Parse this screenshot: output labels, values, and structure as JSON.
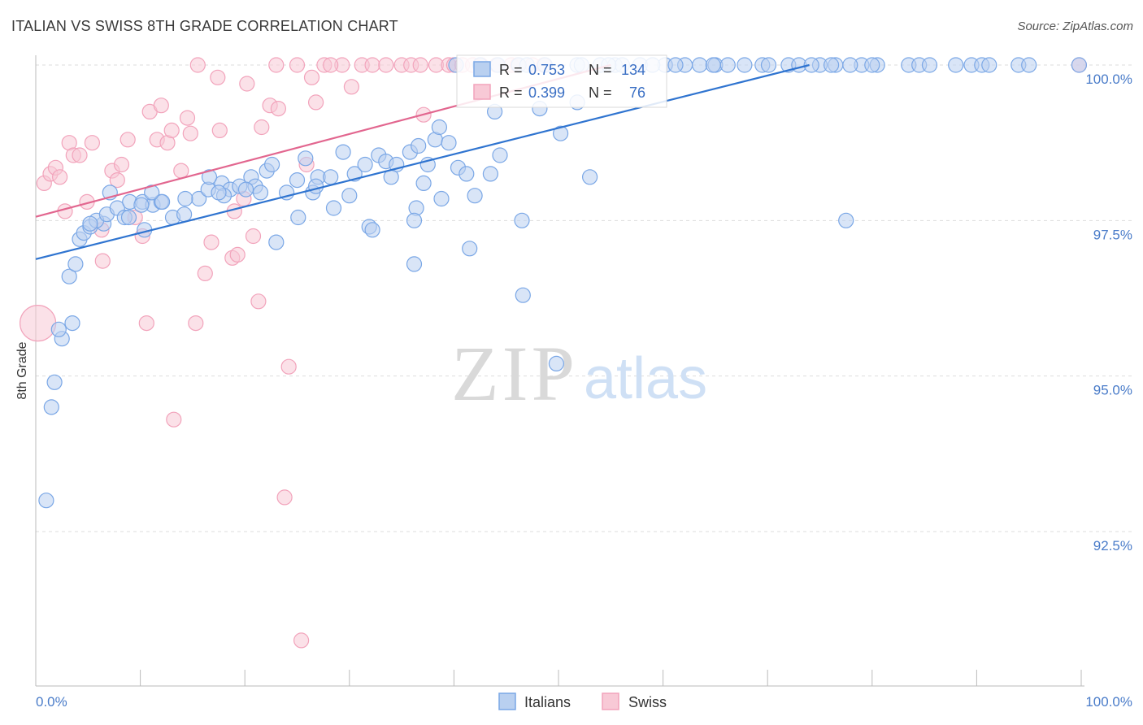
{
  "header": {
    "title": "ITALIAN VS SWISS 8TH GRADE CORRELATION CHART",
    "source": "Source: ZipAtlas.com"
  },
  "watermark": {
    "zip": "ZIP",
    "atlas": "atlas"
  },
  "colors": {
    "italians": "#7aa7e6",
    "italians_line": "#2f74d0",
    "swiss": "#f2a3bb",
    "swiss_line": "#e2668f",
    "tick": "#4a7cc9"
  },
  "stats": {
    "italians": {
      "r_label": "R =",
      "r_value": "0.753",
      "n_label": "N =",
      "n_value": "134"
    },
    "swiss": {
      "r_label": "R =",
      "r_value": "0.399",
      "n_label": "N =",
      "n_value": "76"
    }
  },
  "chart_data": {
    "type": "scatter",
    "ylabel": "8th Grade",
    "xlim": [
      0,
      100
    ],
    "ylim": [
      90.25,
      100.25
    ],
    "x_tick_labels": [
      "0.0%",
      "100.0%"
    ],
    "y_ticks": [
      {
        "value": 92.5,
        "label": "92.5%"
      },
      {
        "value": 95.0,
        "label": "95.0%"
      },
      {
        "value": 97.5,
        "label": "97.5%"
      },
      {
        "value": 100.0,
        "label": "100.0%"
      }
    ],
    "legend": [
      "Italians",
      "Swiss"
    ],
    "series": [
      {
        "name": "Italians",
        "trend": {
          "x": [
            0,
            74
          ],
          "y": [
            96.88,
            100.0
          ]
        },
        "points": [
          [
            1.0,
            93.0
          ],
          [
            1.5,
            94.5
          ],
          [
            1.8,
            94.9
          ],
          [
            2.5,
            95.6
          ],
          [
            2.2,
            95.75
          ],
          [
            3.5,
            95.85
          ],
          [
            3.2,
            96.6
          ],
          [
            3.8,
            96.8
          ],
          [
            4.2,
            97.2
          ],
          [
            4.6,
            97.3
          ],
          [
            5.2,
            97.4
          ],
          [
            6.5,
            97.45
          ],
          [
            5.8,
            97.5
          ],
          [
            6.8,
            97.6
          ],
          [
            7.8,
            97.7
          ],
          [
            8.5,
            97.55
          ],
          [
            9.0,
            97.8
          ],
          [
            10.2,
            97.8
          ],
          [
            11.2,
            97.75
          ],
          [
            12.0,
            97.8
          ],
          [
            13.1,
            97.55
          ],
          [
            14.2,
            97.6
          ],
          [
            15.6,
            97.85
          ],
          [
            16.5,
            98.0
          ],
          [
            17.8,
            98.1
          ],
          [
            18.6,
            98.0
          ],
          [
            19.5,
            98.05
          ],
          [
            20.6,
            98.2
          ],
          [
            21.0,
            98.05
          ],
          [
            22.1,
            98.3
          ],
          [
            22.6,
            98.4
          ],
          [
            24.0,
            97.95
          ],
          [
            25.0,
            98.15
          ],
          [
            25.8,
            98.5
          ],
          [
            26.5,
            97.95
          ],
          [
            27.0,
            98.2
          ],
          [
            28.2,
            98.2
          ],
          [
            29.4,
            98.6
          ],
          [
            30.5,
            98.25
          ],
          [
            31.5,
            98.4
          ],
          [
            32.8,
            98.55
          ],
          [
            33.5,
            98.45
          ],
          [
            34.5,
            98.4
          ],
          [
            35.8,
            98.6
          ],
          [
            36.6,
            98.7
          ],
          [
            37.5,
            98.4
          ],
          [
            38.2,
            98.8
          ],
          [
            39.5,
            98.75
          ],
          [
            40.4,
            98.35
          ],
          [
            41.2,
            98.25
          ],
          [
            42.0,
            97.9
          ],
          [
            18.0,
            97.9
          ],
          [
            17.5,
            97.95
          ],
          [
            20.1,
            98.0
          ],
          [
            21.5,
            97.95
          ],
          [
            16.6,
            98.2
          ],
          [
            14.3,
            97.85
          ],
          [
            12.1,
            97.8
          ],
          [
            11.1,
            97.95
          ],
          [
            10.1,
            97.75
          ],
          [
            8.9,
            97.55
          ],
          [
            7.1,
            97.95
          ],
          [
            5.2,
            97.45
          ],
          [
            10.4,
            97.35
          ],
          [
            23.0,
            97.15
          ],
          [
            25.1,
            97.55
          ],
          [
            26.8,
            98.05
          ],
          [
            28.5,
            97.7
          ],
          [
            30.0,
            97.9
          ],
          [
            31.9,
            97.4
          ],
          [
            32.2,
            97.35
          ],
          [
            34.0,
            98.2
          ],
          [
            36.4,
            97.7
          ],
          [
            36.2,
            97.5
          ],
          [
            37.1,
            98.1
          ],
          [
            38.8,
            97.85
          ],
          [
            41.5,
            97.05
          ],
          [
            43.5,
            98.25
          ],
          [
            46.5,
            97.5
          ],
          [
            46.6,
            96.3
          ],
          [
            50.2,
            98.9
          ],
          [
            53.0,
            98.2
          ],
          [
            49.8,
            95.2
          ],
          [
            36.2,
            96.8
          ],
          [
            38.6,
            99.0
          ],
          [
            43.9,
            99.25
          ],
          [
            48.2,
            99.3
          ],
          [
            51.8,
            99.4
          ],
          [
            57.8,
            100.0
          ],
          [
            60.2,
            100.0
          ],
          [
            62.1,
            100.0
          ],
          [
            63.5,
            100.0
          ],
          [
            65.0,
            100.0
          ],
          [
            67.8,
            100.0
          ],
          [
            69.5,
            100.0
          ],
          [
            72.0,
            100.0
          ],
          [
            73.0,
            100.0
          ],
          [
            75.0,
            100.0
          ],
          [
            76.5,
            100.0
          ],
          [
            79.0,
            100.0
          ],
          [
            80.5,
            100.0
          ],
          [
            83.5,
            100.0
          ],
          [
            84.5,
            100.0
          ],
          [
            88.0,
            100.0
          ],
          [
            89.5,
            100.0
          ],
          [
            90.5,
            100.0
          ],
          [
            94.0,
            100.0
          ],
          [
            99.8,
            100.0
          ],
          [
            44.2,
            100.0
          ],
          [
            46.2,
            100.0
          ],
          [
            48.7,
            100.0
          ],
          [
            51.8,
            100.0
          ],
          [
            54.0,
            100.0
          ],
          [
            55.4,
            100.0
          ],
          [
            56.1,
            100.0
          ],
          [
            40.2,
            100.0
          ],
          [
            42.5,
            100.0
          ],
          [
            47.0,
            100.0
          ],
          [
            52.2,
            100.0
          ],
          [
            54.8,
            100.0
          ],
          [
            59.0,
            100.0
          ],
          [
            61.2,
            100.0
          ],
          [
            64.8,
            100.0
          ],
          [
            66.2,
            100.0
          ],
          [
            70.1,
            100.0
          ],
          [
            74.2,
            100.0
          ],
          [
            80.0,
            100.0
          ],
          [
            85.5,
            100.0
          ],
          [
            91.2,
            100.0
          ],
          [
            95.0,
            100.0
          ],
          [
            77.9,
            100.0
          ],
          [
            76.1,
            100.0
          ],
          [
            77.5,
            97.5
          ],
          [
            44.4,
            98.55
          ]
        ]
      },
      {
        "name": "Swiss",
        "trend": {
          "x": [
            0,
            55
          ],
          "y": [
            97.56,
            100.0
          ]
        },
        "points": [
          [
            0.2,
            95.85
          ],
          [
            0.8,
            98.1
          ],
          [
            1.4,
            98.25
          ],
          [
            1.9,
            98.35
          ],
          [
            2.3,
            98.2
          ],
          [
            2.8,
            97.65
          ],
          [
            3.2,
            98.75
          ],
          [
            3.6,
            98.55
          ],
          [
            4.2,
            98.55
          ],
          [
            4.9,
            97.8
          ],
          [
            5.4,
            98.75
          ],
          [
            6.3,
            97.35
          ],
          [
            6.4,
            96.85
          ],
          [
            7.3,
            98.3
          ],
          [
            7.8,
            98.15
          ],
          [
            8.2,
            98.4
          ],
          [
            8.8,
            98.8
          ],
          [
            9.5,
            97.55
          ],
          [
            10.2,
            97.25
          ],
          [
            10.6,
            95.85
          ],
          [
            10.9,
            99.25
          ],
          [
            11.6,
            98.8
          ],
          [
            12.0,
            99.35
          ],
          [
            12.6,
            98.75
          ],
          [
            13.0,
            98.95
          ],
          [
            13.2,
            94.3
          ],
          [
            13.9,
            98.3
          ],
          [
            14.5,
            99.15
          ],
          [
            14.8,
            98.9
          ],
          [
            15.3,
            95.85
          ],
          [
            15.5,
            100.0
          ],
          [
            16.2,
            96.65
          ],
          [
            16.8,
            97.15
          ],
          [
            17.4,
            99.8
          ],
          [
            17.6,
            98.95
          ],
          [
            18.8,
            96.9
          ],
          [
            19.0,
            97.65
          ],
          [
            19.3,
            96.95
          ],
          [
            19.9,
            97.85
          ],
          [
            20.2,
            99.7
          ],
          [
            20.8,
            97.25
          ],
          [
            21.3,
            96.2
          ],
          [
            21.6,
            99.0
          ],
          [
            22.4,
            99.35
          ],
          [
            23.0,
            100.0
          ],
          [
            23.2,
            99.3
          ],
          [
            23.8,
            93.05
          ],
          [
            24.2,
            95.15
          ],
          [
            25.0,
            100.0
          ],
          [
            25.4,
            90.75
          ],
          [
            25.9,
            98.4
          ],
          [
            26.4,
            99.8
          ],
          [
            26.8,
            99.4
          ],
          [
            27.6,
            100.0
          ],
          [
            29.3,
            100.0
          ],
          [
            30.2,
            99.65
          ],
          [
            31.2,
            100.0
          ],
          [
            32.2,
            100.0
          ],
          [
            33.5,
            100.0
          ],
          [
            35.0,
            100.0
          ],
          [
            35.9,
            100.0
          ],
          [
            36.8,
            100.0
          ],
          [
            37.1,
            99.2
          ],
          [
            38.3,
            100.0
          ],
          [
            39.5,
            100.0
          ],
          [
            40.0,
            100.0
          ],
          [
            40.8,
            100.0
          ],
          [
            41.8,
            100.0
          ],
          [
            42.6,
            100.0
          ],
          [
            44.1,
            100.0
          ],
          [
            45.5,
            100.0
          ],
          [
            46.1,
            100.0
          ],
          [
            47.5,
            100.0
          ],
          [
            48.6,
            100.0
          ],
          [
            99.8,
            100.0
          ],
          [
            28.2,
            100.0
          ]
        ]
      }
    ]
  }
}
